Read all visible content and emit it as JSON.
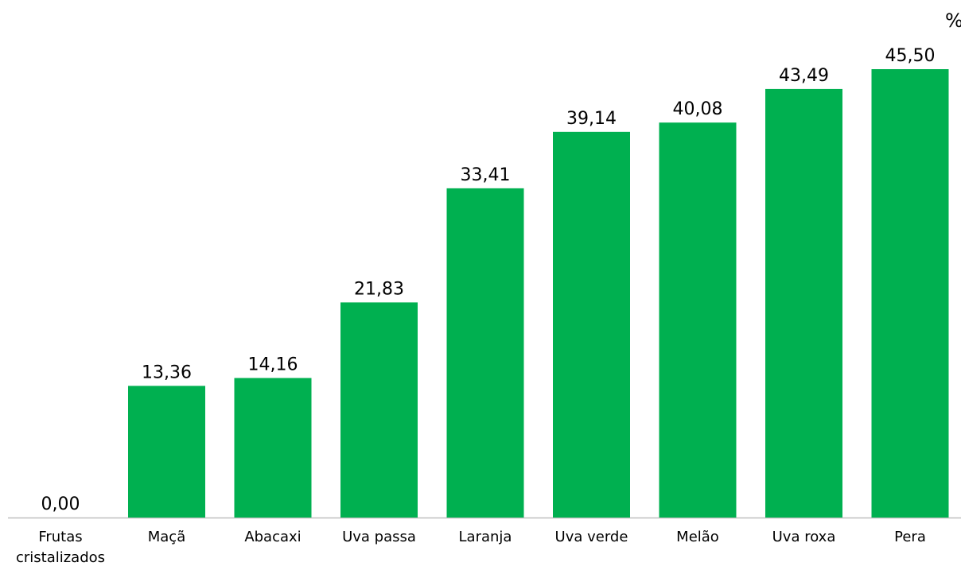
{
  "chart_data": {
    "type": "bar",
    "unit": "%",
    "categories": [
      "Frutas cristalizados",
      "Maçã",
      "Abacaxi",
      "Uva passa",
      "Laranja",
      "Uva verde",
      "Melão",
      "Uva roxa",
      "Pera"
    ],
    "category_lines": [
      [
        "Frutas",
        "cristalizados"
      ],
      [
        "Maçã"
      ],
      [
        "Abacaxi"
      ],
      [
        "Uva passa"
      ],
      [
        "Laranja"
      ],
      [
        "Uva verde"
      ],
      [
        "Melão"
      ],
      [
        "Uva roxa"
      ],
      [
        "Pera"
      ]
    ],
    "values": [
      0.0,
      13.36,
      14.16,
      21.83,
      33.41,
      39.14,
      40.08,
      43.49,
      45.5
    ],
    "value_labels": [
      "0,00",
      "13,36",
      "14,16",
      "21,83",
      "33,41",
      "39,14",
      "40,08",
      "43,49",
      "45,50"
    ],
    "bar_color": "#00B050",
    "axis_color": "#BFBFBF",
    "grid": false,
    "legend": "none"
  }
}
